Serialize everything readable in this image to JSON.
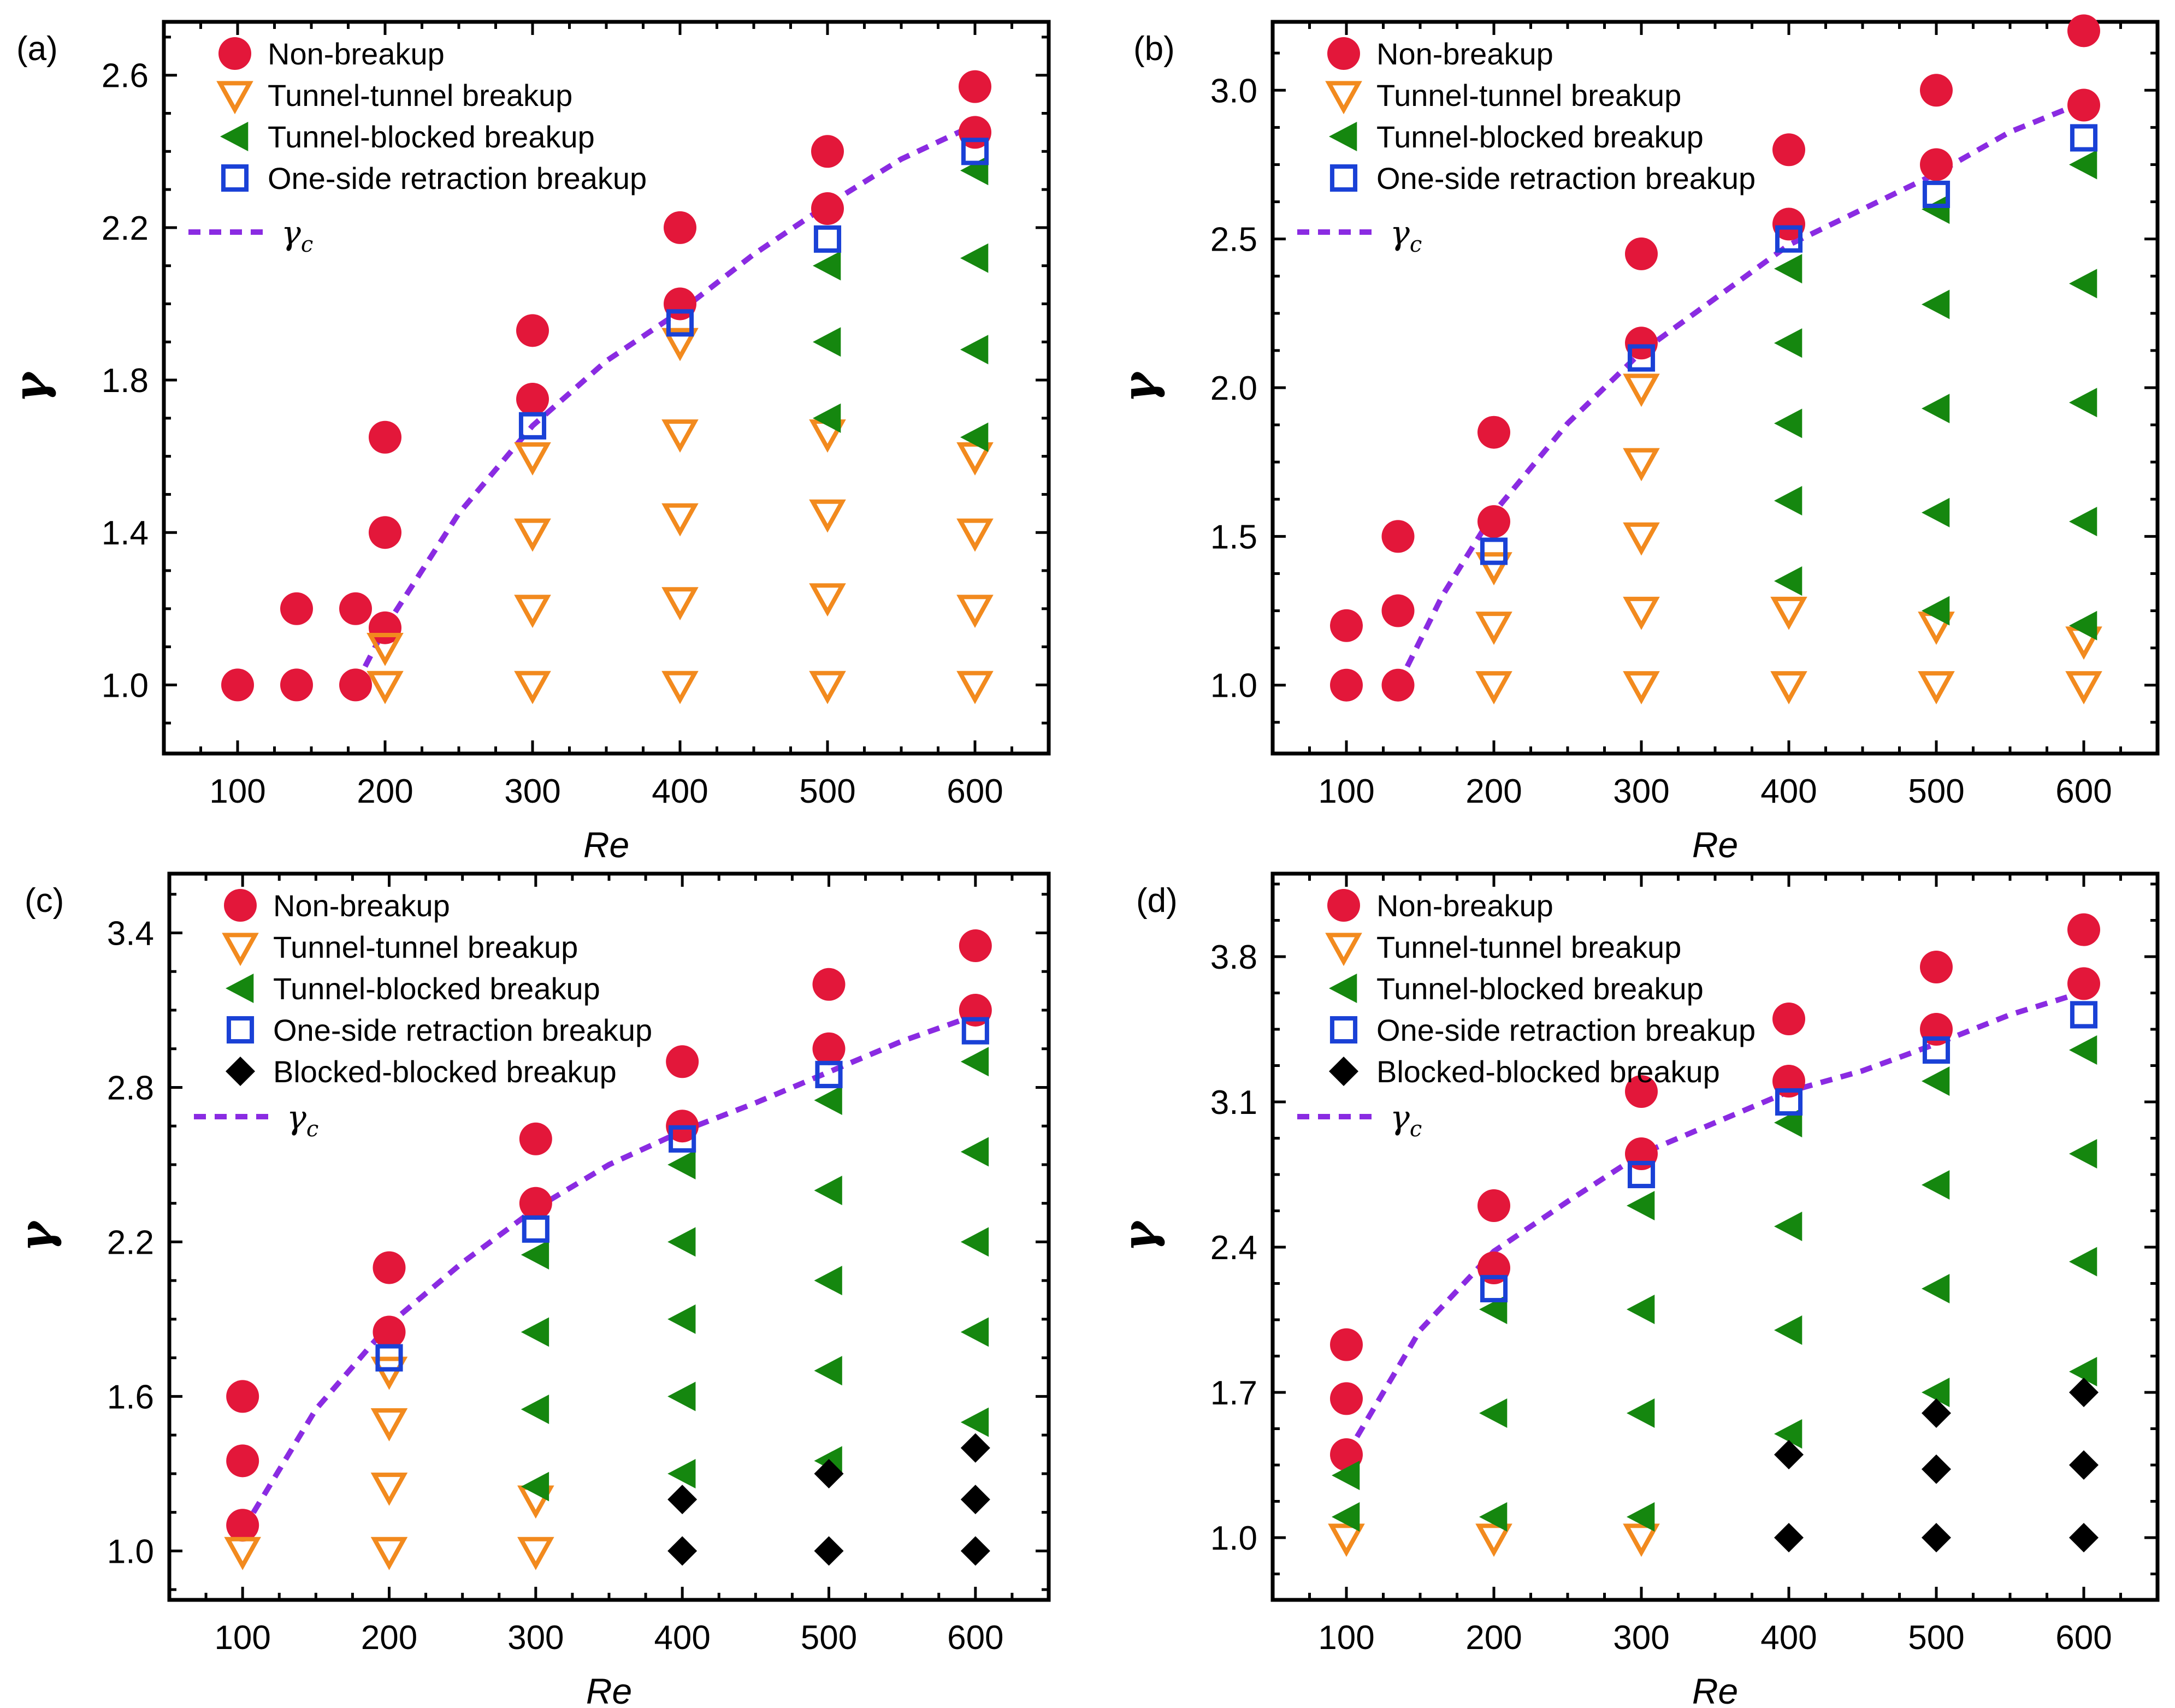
{
  "colors": {
    "non_breakup": "#e3173a",
    "tunnel_tunnel": "#f28a1e",
    "tunnel_blocked": "#15870f",
    "one_side": "#1a41d6",
    "blocked_blocked": "#000000",
    "gamma_c": "#8a2be2"
  },
  "legend_labels": {
    "non_breakup": "Non-breakup",
    "tunnel_tunnel": "Tunnel-tunnel breakup",
    "tunnel_blocked": "Tunnel-blocked breakup",
    "one_side": "One-side retraction breakup",
    "blocked_blocked": "Blocked-blocked breakup",
    "gamma_c_symbol": "γ",
    "gamma_c_sub": "c"
  },
  "chart_data": [
    {
      "type": "scatter",
      "panel_label": "(a)",
      "xlabel": "Re",
      "ylabel": "γ",
      "xlim": [
        50,
        650
      ],
      "ylim": [
        0.82,
        2.74
      ],
      "xticks": [
        100,
        200,
        300,
        400,
        500,
        600
      ],
      "yticks": [
        1.0,
        1.4,
        1.8,
        2.2,
        2.6
      ],
      "ytick_labels": [
        "1.0",
        "1.4",
        "1.8",
        "2.2",
        "2.6"
      ],
      "legend": [
        "non_breakup",
        "tunnel_tunnel",
        "tunnel_blocked",
        "one_side"
      ],
      "series": {
        "non_breakup": [
          [
            100,
            1.0
          ],
          [
            140,
            1.0
          ],
          [
            140,
            1.2
          ],
          [
            180,
            1.0
          ],
          [
            180,
            1.2
          ],
          [
            200,
            1.15
          ],
          [
            200,
            1.4
          ],
          [
            200,
            1.65
          ],
          [
            300,
            1.75
          ],
          [
            300,
            1.93
          ],
          [
            400,
            2.0
          ],
          [
            400,
            2.2
          ],
          [
            500,
            2.25
          ],
          [
            500,
            2.4
          ],
          [
            600,
            2.45
          ],
          [
            600,
            2.57
          ]
        ],
        "tunnel_tunnel": [
          [
            200,
            1.0
          ],
          [
            200,
            1.1
          ],
          [
            300,
            1.0
          ],
          [
            300,
            1.2
          ],
          [
            300,
            1.4
          ],
          [
            300,
            1.6
          ],
          [
            400,
            1.0
          ],
          [
            400,
            1.22
          ],
          [
            400,
            1.44
          ],
          [
            400,
            1.66
          ],
          [
            400,
            1.9
          ],
          [
            500,
            1.0
          ],
          [
            500,
            1.23
          ],
          [
            500,
            1.45
          ],
          [
            500,
            1.66
          ],
          [
            600,
            1.0
          ],
          [
            600,
            1.2
          ],
          [
            600,
            1.4
          ],
          [
            600,
            1.6
          ]
        ],
        "tunnel_blocked": [
          [
            500,
            1.7
          ],
          [
            500,
            1.9
          ],
          [
            500,
            2.1
          ],
          [
            600,
            1.65
          ],
          [
            600,
            1.88
          ],
          [
            600,
            2.12
          ],
          [
            600,
            2.35
          ]
        ],
        "one_side": [
          [
            300,
            1.68
          ],
          [
            400,
            1.95
          ],
          [
            500,
            2.17
          ],
          [
            600,
            2.4
          ]
        ],
        "blocked_blocked": []
      },
      "gamma_c": [
        [
          180,
          1.0
        ],
        [
          200,
          1.15
        ],
        [
          250,
          1.45
        ],
        [
          300,
          1.68
        ],
        [
          350,
          1.85
        ],
        [
          400,
          1.98
        ],
        [
          450,
          2.13
        ],
        [
          500,
          2.26
        ],
        [
          550,
          2.38
        ],
        [
          600,
          2.47
        ]
      ]
    },
    {
      "type": "scatter",
      "panel_label": "(b)",
      "xlabel": "Re",
      "ylabel": "γ",
      "xlim": [
        50,
        650
      ],
      "ylim": [
        0.77,
        3.23
      ],
      "xticks": [
        100,
        200,
        300,
        400,
        500,
        600
      ],
      "yticks": [
        1.0,
        1.5,
        2.0,
        2.5,
        3.0
      ],
      "ytick_labels": [
        "1.0",
        "1.5",
        "2.0",
        "2.5",
        "3.0"
      ],
      "legend": [
        "non_breakup",
        "tunnel_tunnel",
        "tunnel_blocked",
        "one_side"
      ],
      "series": {
        "non_breakup": [
          [
            100,
            1.0
          ],
          [
            100,
            1.2
          ],
          [
            135,
            1.0
          ],
          [
            135,
            1.25
          ],
          [
            135,
            1.5
          ],
          [
            200,
            1.55
          ],
          [
            200,
            1.85
          ],
          [
            300,
            2.15
          ],
          [
            300,
            2.45
          ],
          [
            400,
            2.55
          ],
          [
            400,
            2.8
          ],
          [
            500,
            2.75
          ],
          [
            500,
            3.0
          ],
          [
            600,
            2.95
          ],
          [
            600,
            3.2
          ]
        ],
        "tunnel_tunnel": [
          [
            200,
            1.0
          ],
          [
            200,
            1.2
          ],
          [
            200,
            1.4
          ],
          [
            300,
            1.0
          ],
          [
            300,
            1.25
          ],
          [
            300,
            1.5
          ],
          [
            300,
            1.75
          ],
          [
            300,
            2.0
          ],
          [
            400,
            1.0
          ],
          [
            400,
            1.25
          ],
          [
            500,
            1.0
          ],
          [
            500,
            1.2
          ],
          [
            600,
            1.0
          ],
          [
            600,
            1.15
          ]
        ],
        "tunnel_blocked": [
          [
            400,
            1.35
          ],
          [
            400,
            1.62
          ],
          [
            400,
            1.88
          ],
          [
            400,
            2.15
          ],
          [
            400,
            2.4
          ],
          [
            500,
            1.25
          ],
          [
            500,
            1.58
          ],
          [
            500,
            1.93
          ],
          [
            500,
            2.28
          ],
          [
            500,
            2.6
          ],
          [
            600,
            1.2
          ],
          [
            600,
            1.55
          ],
          [
            600,
            1.95
          ],
          [
            600,
            2.35
          ],
          [
            600,
            2.75
          ]
        ],
        "one_side": [
          [
            200,
            1.45
          ],
          [
            300,
            2.1
          ],
          [
            400,
            2.5
          ],
          [
            500,
            2.65
          ],
          [
            600,
            2.84
          ]
        ],
        "blocked_blocked": []
      },
      "gamma_c": [
        [
          135,
          1.0
        ],
        [
          165,
          1.3
        ],
        [
          200,
          1.58
        ],
        [
          250,
          1.88
        ],
        [
          300,
          2.12
        ],
        [
          350,
          2.3
        ],
        [
          400,
          2.48
        ],
        [
          450,
          2.6
        ],
        [
          500,
          2.72
        ],
        [
          550,
          2.86
        ],
        [
          600,
          2.96
        ]
      ]
    },
    {
      "type": "scatter",
      "panel_label": "(c)",
      "xlabel": "Re",
      "ylabel": "γ",
      "xlim": [
        50,
        650
      ],
      "ylim": [
        0.81,
        3.63
      ],
      "xticks": [
        100,
        200,
        300,
        400,
        500,
        600
      ],
      "yticks": [
        1.0,
        1.6,
        2.2,
        2.8,
        3.4
      ],
      "ytick_labels": [
        "1.0",
        "1.6",
        "2.2",
        "2.8",
        "3.4"
      ],
      "legend": [
        "non_breakup",
        "tunnel_tunnel",
        "tunnel_blocked",
        "one_side",
        "blocked_blocked"
      ],
      "series": {
        "non_breakup": [
          [
            100,
            1.1
          ],
          [
            100,
            1.35
          ],
          [
            100,
            1.6
          ],
          [
            200,
            1.85
          ],
          [
            200,
            2.1
          ],
          [
            300,
            2.35
          ],
          [
            300,
            2.6
          ],
          [
            400,
            2.65
          ],
          [
            400,
            2.9
          ],
          [
            500,
            2.95
          ],
          [
            500,
            3.2
          ],
          [
            600,
            3.1
          ],
          [
            600,
            3.35
          ]
        ],
        "tunnel_tunnel": [
          [
            100,
            1.0
          ],
          [
            200,
            1.0
          ],
          [
            200,
            1.25
          ],
          [
            200,
            1.5
          ],
          [
            200,
            1.7
          ],
          [
            300,
            1.0
          ],
          [
            300,
            1.2
          ]
        ],
        "tunnel_blocked": [
          [
            300,
            1.25
          ],
          [
            300,
            1.55
          ],
          [
            300,
            1.85
          ],
          [
            300,
            2.15
          ],
          [
            400,
            1.3
          ],
          [
            400,
            1.6
          ],
          [
            400,
            1.9
          ],
          [
            400,
            2.2
          ],
          [
            400,
            2.5
          ],
          [
            500,
            1.35
          ],
          [
            500,
            1.7
          ],
          [
            500,
            2.05
          ],
          [
            500,
            2.4
          ],
          [
            500,
            2.75
          ],
          [
            600,
            1.5
          ],
          [
            600,
            1.85
          ],
          [
            600,
            2.2
          ],
          [
            600,
            2.55
          ],
          [
            600,
            2.9
          ]
        ],
        "one_side": [
          [
            200,
            1.75
          ],
          [
            300,
            2.25
          ],
          [
            400,
            2.6
          ],
          [
            500,
            2.85
          ],
          [
            600,
            3.02
          ]
        ],
        "blocked_blocked": [
          [
            400,
            1.0
          ],
          [
            400,
            1.2
          ],
          [
            500,
            1.0
          ],
          [
            500,
            1.3
          ],
          [
            600,
            1.0
          ],
          [
            600,
            1.2
          ],
          [
            600,
            1.4
          ]
        ]
      },
      "gamma_c": [
        [
          100,
          1.08
        ],
        [
          150,
          1.55
        ],
        [
          200,
          1.88
        ],
        [
          250,
          2.12
        ],
        [
          300,
          2.33
        ],
        [
          350,
          2.5
        ],
        [
          400,
          2.63
        ],
        [
          450,
          2.74
        ],
        [
          500,
          2.86
        ],
        [
          550,
          2.98
        ],
        [
          600,
          3.08
        ]
      ]
    },
    {
      "type": "scatter",
      "panel_label": "(d)",
      "xlabel": "Re",
      "ylabel": "γ",
      "xlim": [
        50,
        650
      ],
      "ylim": [
        0.7,
        4.2
      ],
      "xticks": [
        100,
        200,
        300,
        400,
        500,
        600
      ],
      "yticks": [
        1.0,
        1.7,
        2.4,
        3.1,
        3.8
      ],
      "ytick_labels": [
        "1.0",
        "1.7",
        "2.4",
        "3.1",
        "3.8"
      ],
      "legend": [
        "non_breakup",
        "tunnel_tunnel",
        "tunnel_blocked",
        "one_side",
        "blocked_blocked"
      ],
      "series": {
        "non_breakup": [
          [
            100,
            1.4
          ],
          [
            100,
            1.67
          ],
          [
            100,
            1.93
          ],
          [
            200,
            2.3
          ],
          [
            200,
            2.6
          ],
          [
            300,
            2.85
          ],
          [
            300,
            3.15
          ],
          [
            400,
            3.2
          ],
          [
            400,
            3.5
          ],
          [
            500,
            3.45
          ],
          [
            500,
            3.75
          ],
          [
            600,
            3.67
          ],
          [
            600,
            3.93
          ]
        ],
        "tunnel_tunnel": [
          [
            100,
            1.0
          ],
          [
            200,
            1.0
          ],
          [
            300,
            1.0
          ]
        ],
        "tunnel_blocked": [
          [
            100,
            1.1
          ],
          [
            100,
            1.3
          ],
          [
            200,
            1.1
          ],
          [
            200,
            1.6
          ],
          [
            200,
            2.1
          ],
          [
            300,
            1.1
          ],
          [
            300,
            1.6
          ],
          [
            300,
            2.1
          ],
          [
            300,
            2.6
          ],
          [
            400,
            1.5
          ],
          [
            400,
            2.0
          ],
          [
            400,
            2.5
          ],
          [
            400,
            3.0
          ],
          [
            500,
            1.7
          ],
          [
            500,
            2.2
          ],
          [
            500,
            2.7
          ],
          [
            500,
            3.2
          ],
          [
            600,
            1.8
          ],
          [
            600,
            2.33
          ],
          [
            600,
            2.85
          ],
          [
            600,
            3.35
          ]
        ],
        "one_side": [
          [
            200,
            2.2
          ],
          [
            300,
            2.75
          ],
          [
            400,
            3.1
          ],
          [
            500,
            3.35
          ],
          [
            600,
            3.52
          ]
        ],
        "blocked_blocked": [
          [
            400,
            1.0
          ],
          [
            400,
            1.4
          ],
          [
            500,
            1.0
          ],
          [
            500,
            1.33
          ],
          [
            500,
            1.6
          ],
          [
            600,
            1.0
          ],
          [
            600,
            1.35
          ],
          [
            600,
            1.7
          ]
        ]
      },
      "gamma_c": [
        [
          100,
          1.4
        ],
        [
          150,
          2.0
        ],
        [
          200,
          2.38
        ],
        [
          250,
          2.62
        ],
        [
          300,
          2.85
        ],
        [
          350,
          3.0
        ],
        [
          400,
          3.15
        ],
        [
          450,
          3.25
        ],
        [
          500,
          3.38
        ],
        [
          550,
          3.52
        ],
        [
          600,
          3.63
        ]
      ]
    }
  ]
}
